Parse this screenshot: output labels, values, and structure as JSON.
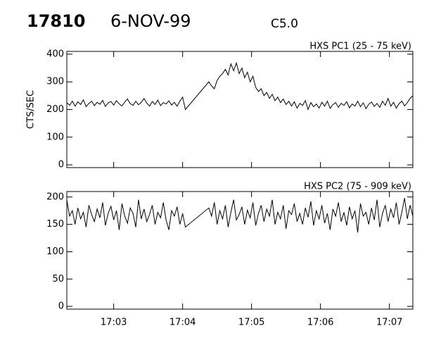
{
  "header": {
    "id": "17810",
    "date": "6-NOV-99",
    "class": "C5.0"
  },
  "chart_data": [
    {
      "type": "line",
      "title": "HXS PC1 (25 - 75 keV)",
      "ylabel": "CTS/SEC",
      "color": "#000000",
      "xlim": [
        2.32,
        7.34
      ],
      "xticks": [
        3,
        4,
        5,
        6,
        7
      ],
      "ylim": [
        -10,
        410
      ],
      "yticks": [
        0,
        100,
        200,
        300,
        400
      ],
      "x": [
        2.32,
        2.36,
        2.4,
        2.44,
        2.48,
        2.52,
        2.56,
        2.6,
        2.64,
        2.68,
        2.72,
        2.76,
        2.8,
        2.84,
        2.88,
        2.92,
        2.96,
        3.0,
        3.04,
        3.08,
        3.12,
        3.16,
        3.2,
        3.24,
        3.28,
        3.32,
        3.36,
        3.4,
        3.44,
        3.48,
        3.52,
        3.56,
        3.6,
        3.64,
        3.68,
        3.72,
        3.76,
        3.8,
        3.84,
        3.88,
        3.92,
        3.96,
        4.0,
        4.04,
        4.38,
        4.42,
        4.46,
        4.5,
        4.54,
        4.58,
        4.62,
        4.66,
        4.7,
        4.74,
        4.78,
        4.82,
        4.86,
        4.9,
        4.94,
        4.98,
        5.02,
        5.06,
        5.1,
        5.14,
        5.18,
        5.22,
        5.26,
        5.3,
        5.34,
        5.38,
        5.42,
        5.46,
        5.5,
        5.54,
        5.58,
        5.62,
        5.66,
        5.7,
        5.74,
        5.78,
        5.82,
        5.86,
        5.9,
        5.94,
        5.98,
        6.02,
        6.06,
        6.1,
        6.14,
        6.18,
        6.22,
        6.26,
        6.3,
        6.34,
        6.38,
        6.42,
        6.46,
        6.5,
        6.54,
        6.58,
        6.62,
        6.66,
        6.7,
        6.74,
        6.78,
        6.82,
        6.86,
        6.9,
        6.94,
        6.98,
        7.02,
        7.06,
        7.1,
        7.14,
        7.18,
        7.22,
        7.26,
        7.3,
        7.34
      ],
      "values": [
        225,
        215,
        230,
        212,
        228,
        218,
        235,
        210,
        222,
        230,
        214,
        226,
        219,
        233,
        211,
        224,
        229,
        216,
        232,
        220,
        213,
        227,
        238,
        221,
        215,
        230,
        217,
        226,
        240,
        223,
        212,
        229,
        218,
        234,
        214,
        225,
        220,
        231,
        216,
        226,
        212,
        230,
        245,
        200,
        300,
        285,
        275,
        305,
        320,
        330,
        345,
        325,
        365,
        340,
        368,
        330,
        350,
        315,
        335,
        300,
        320,
        280,
        265,
        275,
        250,
        262,
        240,
        255,
        232,
        245,
        225,
        238,
        218,
        230,
        212,
        228,
        205,
        222,
        215,
        232,
        200,
        225,
        210,
        220,
        205,
        226,
        212,
        230,
        204,
        218,
        225,
        208,
        222,
        215,
        228,
        206,
        220,
        212,
        230,
        210,
        224,
        203,
        219,
        227,
        211,
        222,
        208,
        230,
        215,
        240,
        212,
        226,
        205,
        221,
        230,
        213,
        225,
        240,
        250
      ]
    },
    {
      "type": "line",
      "title": "HXS PC2 (75 - 909 keV)",
      "color": "#000000",
      "xlim": [
        2.32,
        7.34
      ],
      "xticks": [
        {
          "value": 3,
          "label": "17:03"
        },
        {
          "value": 4,
          "label": "17:04"
        },
        {
          "value": 5,
          "label": "17:05"
        },
        {
          "value": 6,
          "label": "17:06"
        },
        {
          "value": 7,
          "label": "17:07"
        }
      ],
      "ylim": [
        -5,
        210
      ],
      "yticks": [
        0,
        50,
        100,
        150,
        200
      ],
      "x": [
        2.32,
        2.36,
        2.4,
        2.44,
        2.48,
        2.52,
        2.56,
        2.6,
        2.64,
        2.68,
        2.72,
        2.76,
        2.8,
        2.84,
        2.88,
        2.92,
        2.96,
        3.0,
        3.04,
        3.08,
        3.12,
        3.16,
        3.2,
        3.24,
        3.28,
        3.32,
        3.36,
        3.4,
        3.44,
        3.48,
        3.52,
        3.56,
        3.6,
        3.64,
        3.68,
        3.72,
        3.76,
        3.8,
        3.84,
        3.88,
        3.92,
        3.96,
        4.0,
        4.04,
        4.38,
        4.42,
        4.46,
        4.5,
        4.54,
        4.58,
        4.62,
        4.66,
        4.7,
        4.74,
        4.78,
        4.82,
        4.86,
        4.9,
        4.94,
        4.98,
        5.02,
        5.06,
        5.1,
        5.14,
        5.18,
        5.22,
        5.26,
        5.3,
        5.34,
        5.38,
        5.42,
        5.46,
        5.5,
        5.54,
        5.58,
        5.62,
        5.66,
        5.7,
        5.74,
        5.78,
        5.82,
        5.86,
        5.9,
        5.94,
        5.98,
        6.02,
        6.06,
        6.1,
        6.14,
        6.18,
        6.22,
        6.26,
        6.3,
        6.34,
        6.38,
        6.42,
        6.46,
        6.5,
        6.54,
        6.58,
        6.62,
        6.66,
        6.7,
        6.74,
        6.78,
        6.82,
        6.86,
        6.9,
        6.94,
        6.98,
        7.02,
        7.06,
        7.1,
        7.14,
        7.18,
        7.22,
        7.26,
        7.3,
        7.34
      ],
      "values": [
        195,
        165,
        175,
        150,
        180,
        160,
        172,
        145,
        185,
        168,
        155,
        178,
        162,
        190,
        148,
        170,
        183,
        158,
        175,
        140,
        188,
        165,
        152,
        180,
        170,
        145,
        195,
        160,
        178,
        155,
        168,
        185,
        150,
        172,
        162,
        190,
        158,
        140,
        175,
        165,
        182,
        150,
        170,
        145,
        180,
        165,
        190,
        150,
        175,
        160,
        185,
        145,
        172,
        195,
        158,
        168,
        182,
        150,
        176,
        162,
        190,
        148,
        170,
        185,
        155,
        178,
        165,
        195,
        150,
        172,
        160,
        185,
        142,
        175,
        168,
        188,
        155,
        170,
        150,
        180,
        163,
        192,
        148,
        175,
        160,
        185,
        152,
        170,
        140,
        178,
        165,
        190,
        155,
        172,
        148,
        182,
        160,
        175,
        135,
        188,
        165,
        172,
        150,
        180,
        158,
        195,
        145,
        170,
        185,
        155,
        178,
        162,
        190,
        150,
        172,
        198,
        160,
        185,
        165
      ]
    }
  ]
}
